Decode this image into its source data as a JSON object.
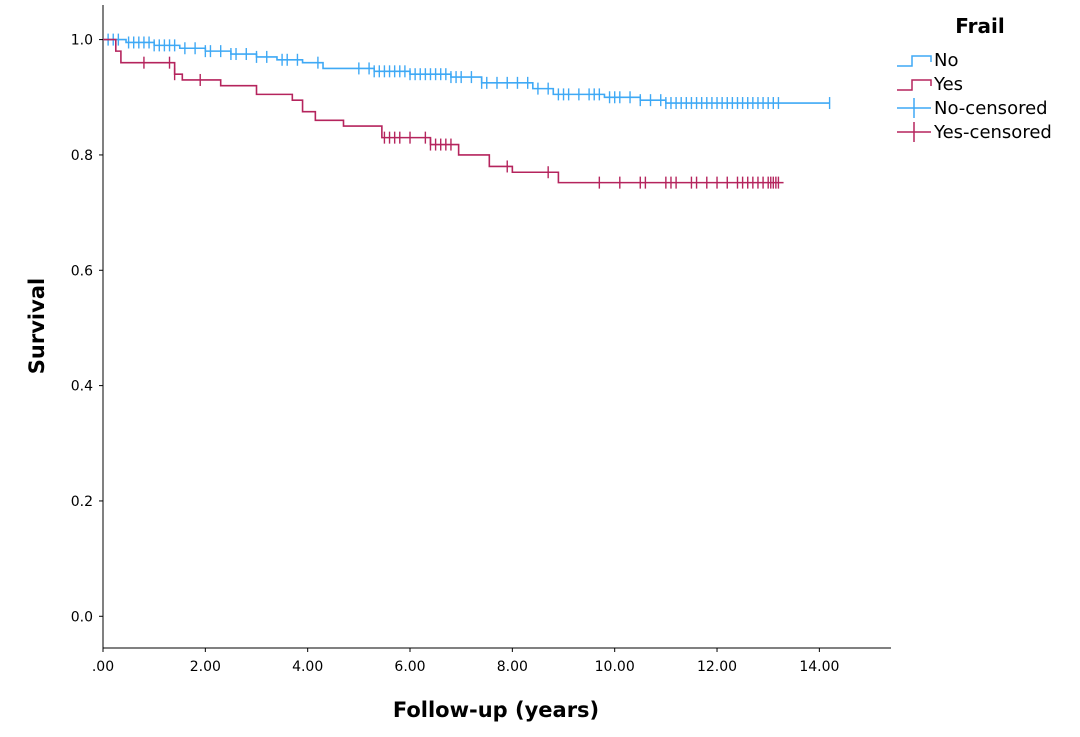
{
  "chart_data": {
    "type": "line",
    "subtype": "kaplan-meier",
    "title": "",
    "xlabel": "Follow-up (years)",
    "ylabel": "Survival",
    "xlim": [
      0,
      15.4
    ],
    "ylim": [
      -0.055,
      1.06
    ],
    "x_ticks": [
      0,
      2,
      4,
      6,
      8,
      10,
      12,
      14
    ],
    "x_tick_labels": [
      ".00",
      "2.00",
      "4.00",
      "6.00",
      "8.00",
      "10.00",
      "12.00",
      "14.00"
    ],
    "y_ticks": [
      0,
      0.2,
      0.4,
      0.6,
      0.8,
      1.0
    ],
    "y_tick_labels": [
      "0.0",
      "0.2",
      "0.4",
      "0.6",
      "0.8",
      "1.0"
    ],
    "grid": false,
    "legend": {
      "title": "Frail",
      "position": "top-right",
      "entries": [
        "No",
        "Yes",
        "No-censored",
        "Yes-censored"
      ]
    },
    "series": [
      {
        "name": "No",
        "color": "#3fa9f5",
        "steps": [
          [
            0,
            1.0
          ],
          [
            0.45,
            0.995
          ],
          [
            1.0,
            0.99
          ],
          [
            1.5,
            0.985
          ],
          [
            2.0,
            0.98
          ],
          [
            2.5,
            0.975
          ],
          [
            3.0,
            0.97
          ],
          [
            3.4,
            0.965
          ],
          [
            3.9,
            0.96
          ],
          [
            4.3,
            0.95
          ],
          [
            5.3,
            0.945
          ],
          [
            6.0,
            0.94
          ],
          [
            6.8,
            0.935
          ],
          [
            7.4,
            0.925
          ],
          [
            8.4,
            0.915
          ],
          [
            8.8,
            0.905
          ],
          [
            9.8,
            0.9
          ],
          [
            10.5,
            0.895
          ],
          [
            11.0,
            0.89
          ]
        ],
        "end_x": 14.2,
        "censored": [
          0.1,
          0.2,
          0.3,
          0.5,
          0.6,
          0.7,
          0.8,
          0.9,
          1.0,
          1.1,
          1.2,
          1.3,
          1.4,
          1.6,
          1.8,
          2.0,
          2.1,
          2.3,
          2.5,
          2.6,
          2.8,
          3.0,
          3.2,
          3.5,
          3.6,
          3.8,
          4.2,
          5.0,
          5.2,
          5.3,
          5.4,
          5.5,
          5.6,
          5.7,
          5.8,
          5.9,
          6.0,
          6.1,
          6.2,
          6.3,
          6.4,
          6.5,
          6.6,
          6.7,
          6.8,
          6.9,
          7.0,
          7.2,
          7.4,
          7.5,
          7.7,
          7.9,
          8.1,
          8.3,
          8.5,
          8.7,
          8.9,
          9.0,
          9.1,
          9.3,
          9.5,
          9.6,
          9.7,
          9.9,
          10.0,
          10.1,
          10.3,
          10.5,
          10.7,
          10.9,
          11.0,
          11.1,
          11.2,
          11.3,
          11.4,
          11.5,
          11.6,
          11.7,
          11.8,
          11.9,
          12.0,
          12.1,
          12.2,
          12.3,
          12.4,
          12.5,
          12.6,
          12.7,
          12.8,
          12.9,
          13.0,
          13.1,
          13.2,
          14.2
        ]
      },
      {
        "name": "Yes",
        "color": "#b5245d",
        "steps": [
          [
            0,
            1.0
          ],
          [
            0.25,
            0.98
          ],
          [
            0.35,
            0.96
          ],
          [
            1.4,
            0.94
          ],
          [
            1.55,
            0.93
          ],
          [
            2.3,
            0.92
          ],
          [
            3.0,
            0.905
          ],
          [
            3.7,
            0.895
          ],
          [
            3.9,
            0.875
          ],
          [
            4.15,
            0.86
          ],
          [
            4.7,
            0.85
          ],
          [
            5.45,
            0.83
          ],
          [
            6.4,
            0.818
          ],
          [
            6.95,
            0.8
          ],
          [
            7.55,
            0.78
          ],
          [
            8.0,
            0.77
          ],
          [
            8.9,
            0.752
          ]
        ],
        "end_x": 13.3,
        "censored": [
          0.8,
          1.3,
          1.4,
          1.9,
          5.5,
          5.6,
          5.7,
          5.8,
          6.0,
          6.3,
          6.4,
          6.5,
          6.6,
          6.7,
          6.8,
          7.9,
          8.7,
          9.7,
          10.1,
          10.5,
          10.6,
          11.0,
          11.1,
          11.2,
          11.5,
          11.6,
          11.8,
          12.0,
          12.2,
          12.4,
          12.5,
          12.6,
          12.7,
          12.8,
          12.9,
          13.0,
          13.05,
          13.1,
          13.15,
          13.2
        ]
      }
    ]
  }
}
